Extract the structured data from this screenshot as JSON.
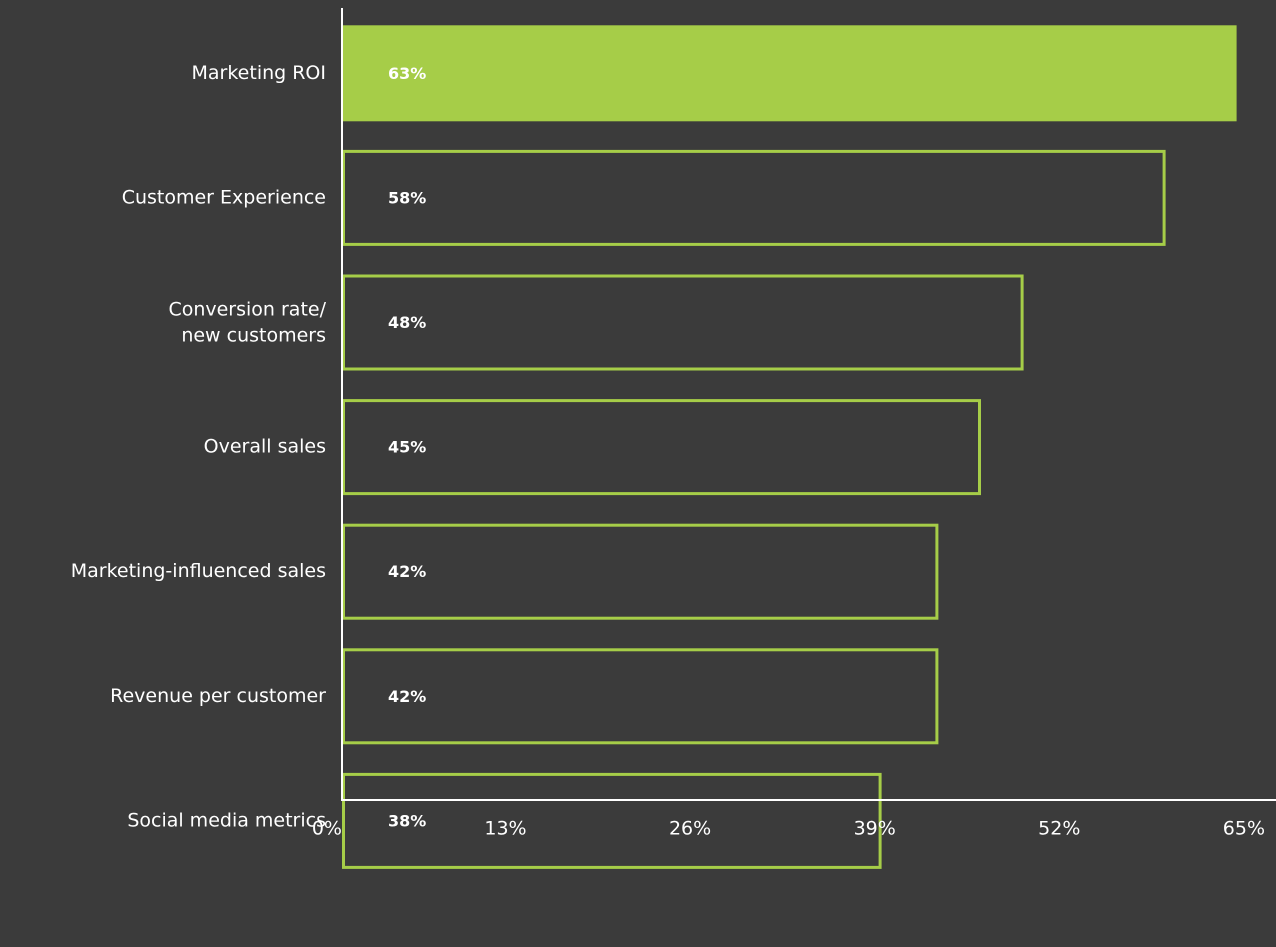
{
  "chart_data": {
    "type": "barh",
    "categories": [
      "Marketing ROI",
      "Customer Experience",
      "Conversion rate/\nnew customers",
      "Overall sales",
      "Marketing-influenced sales",
      "Revenue per customer",
      "Social media metrics"
    ],
    "values": [
      63,
      58,
      48,
      45,
      42,
      42,
      38
    ],
    "value_labels": [
      "63%",
      "58%",
      "48%",
      "45%",
      "42%",
      "42%",
      "38%"
    ],
    "color": "#a6cd48",
    "filled": [
      true,
      false,
      false,
      false,
      false,
      false,
      false
    ],
    "xlim": [
      0,
      65
    ],
    "xticks": [
      {
        "value": 0,
        "label": "0%"
      },
      {
        "value": 13,
        "label": "13%"
      },
      {
        "value": 26,
        "label": "26%"
      },
      {
        "value": 39,
        "label": "39%"
      },
      {
        "value": 52,
        "label": "52%"
      },
      {
        "value": 65,
        "label": "65%"
      }
    ]
  }
}
